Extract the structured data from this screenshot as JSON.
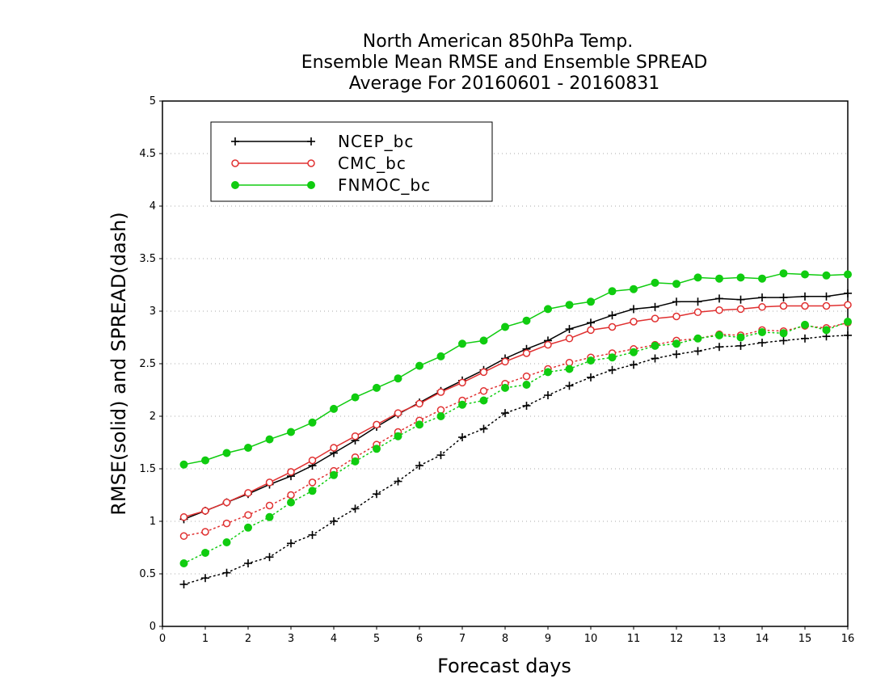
{
  "chart_data": {
    "type": "line",
    "title": [
      "North American 850hPa Temp.",
      "Ensemble Mean RMSE and Ensemble SPREAD",
      "Average For 20160601 - 20160831"
    ],
    "xlabel": "Forecast days",
    "ylabel": "RMSE(solid) and SPREAD(dash)",
    "xlim": [
      0,
      16
    ],
    "ylim": [
      0,
      5
    ],
    "xticks": [
      "0",
      "1",
      "2",
      "3",
      "4",
      "5",
      "6",
      "7",
      "8",
      "9",
      "10",
      "11",
      "12",
      "13",
      "14",
      "15",
      "16"
    ],
    "yticks": [
      "0",
      "0.5",
      "1",
      "1.5",
      "2",
      "2.5",
      "3",
      "3.5",
      "4",
      "4.5",
      "5"
    ],
    "grid": "horizontal dotted",
    "legend_position": "top-left",
    "x": [
      0.5,
      1,
      1.5,
      2,
      2.5,
      3,
      3.5,
      4,
      4.5,
      5,
      5.5,
      6,
      6.5,
      7,
      7.5,
      8,
      8.5,
      9,
      9.5,
      10,
      10.5,
      11,
      11.5,
      12,
      12.5,
      13,
      13.5,
      14,
      14.5,
      15,
      15.5,
      16
    ],
    "series": [
      {
        "name": "NCEP_bc",
        "color": "#000000",
        "marker": "plus",
        "rmse": [
          1.02,
          1.1,
          1.18,
          1.26,
          1.35,
          1.43,
          1.53,
          1.65,
          1.77,
          1.9,
          2.02,
          2.13,
          2.24,
          2.34,
          2.44,
          2.55,
          2.64,
          2.72,
          2.83,
          2.89,
          2.96,
          3.02,
          3.04,
          3.09,
          3.09,
          3.12,
          3.11,
          3.13,
          3.13,
          3.14,
          3.14,
          3.17
        ],
        "spread": [
          0.4,
          0.46,
          0.51,
          0.6,
          0.66,
          0.79,
          0.87,
          1.0,
          1.12,
          1.26,
          1.38,
          1.53,
          1.63,
          1.8,
          1.88,
          2.03,
          2.1,
          2.2,
          2.29,
          2.37,
          2.44,
          2.49,
          2.55,
          2.59,
          2.62,
          2.66,
          2.67,
          2.7,
          2.72,
          2.74,
          2.76,
          2.77
        ]
      },
      {
        "name": "CMC_bc",
        "color": "#e03030",
        "marker": "open-circle",
        "rmse": [
          1.04,
          1.1,
          1.18,
          1.27,
          1.37,
          1.47,
          1.58,
          1.7,
          1.81,
          1.92,
          2.03,
          2.12,
          2.23,
          2.32,
          2.42,
          2.52,
          2.6,
          2.68,
          2.74,
          2.82,
          2.85,
          2.9,
          2.93,
          2.95,
          2.99,
          3.01,
          3.02,
          3.04,
          3.05,
          3.05,
          3.05,
          3.06
        ],
        "spread": [
          0.86,
          0.9,
          0.98,
          1.06,
          1.15,
          1.25,
          1.37,
          1.48,
          1.61,
          1.73,
          1.85,
          1.96,
          2.06,
          2.15,
          2.24,
          2.31,
          2.38,
          2.45,
          2.51,
          2.56,
          2.6,
          2.64,
          2.68,
          2.72,
          2.74,
          2.78,
          2.77,
          2.82,
          2.81,
          2.86,
          2.84,
          2.89
        ]
      },
      {
        "name": "FNMOC_bc",
        "color": "#10cc10",
        "marker": "filled-circle",
        "rmse": [
          1.54,
          1.58,
          1.65,
          1.7,
          1.78,
          1.85,
          1.94,
          2.07,
          2.18,
          2.27,
          2.36,
          2.48,
          2.57,
          2.69,
          2.72,
          2.85,
          2.91,
          3.02,
          3.06,
          3.09,
          3.19,
          3.21,
          3.27,
          3.26,
          3.32,
          3.31,
          3.32,
          3.31,
          3.36,
          3.35,
          3.34,
          3.35
        ],
        "spread": [
          0.6,
          0.7,
          0.8,
          0.94,
          1.04,
          1.18,
          1.29,
          1.44,
          1.57,
          1.69,
          1.81,
          1.92,
          2.0,
          2.11,
          2.15,
          2.27,
          2.3,
          2.42,
          2.45,
          2.53,
          2.56,
          2.61,
          2.67,
          2.69,
          2.74,
          2.77,
          2.75,
          2.8,
          2.79,
          2.87,
          2.82,
          2.9
        ]
      }
    ]
  }
}
